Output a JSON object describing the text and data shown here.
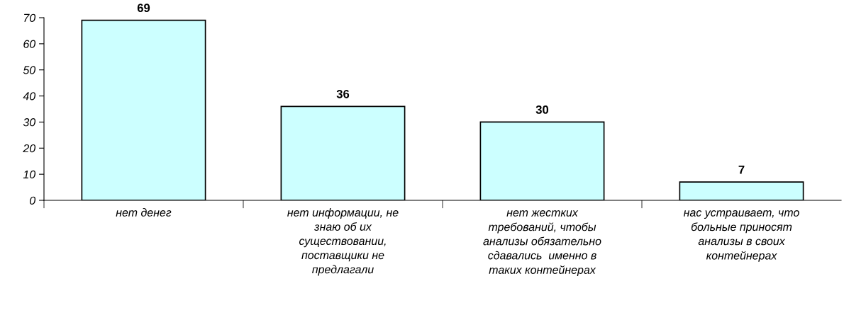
{
  "chart_data": {
    "type": "bar",
    "categories": [
      "нет денег",
      "нет информации, не\nзнаю об их\nсуществовании,\nпоставщики не\nпредлагали",
      "нет жестких\nтребований, чтобы\nанализы обязательно\nсдавались  именно в\nтаких контейнерах",
      "нас устраивает, что\nбольные приносят\nанализы в своих\nконтейнерах"
    ],
    "values": [
      69,
      36,
      30,
      7
    ],
    "color": "#ccffff",
    "ylim": [
      0,
      70
    ],
    "yticks": [
      0,
      10,
      20,
      30,
      40,
      50,
      60,
      70
    ],
    "data_labels": true,
    "grid": false,
    "legend": false
  }
}
